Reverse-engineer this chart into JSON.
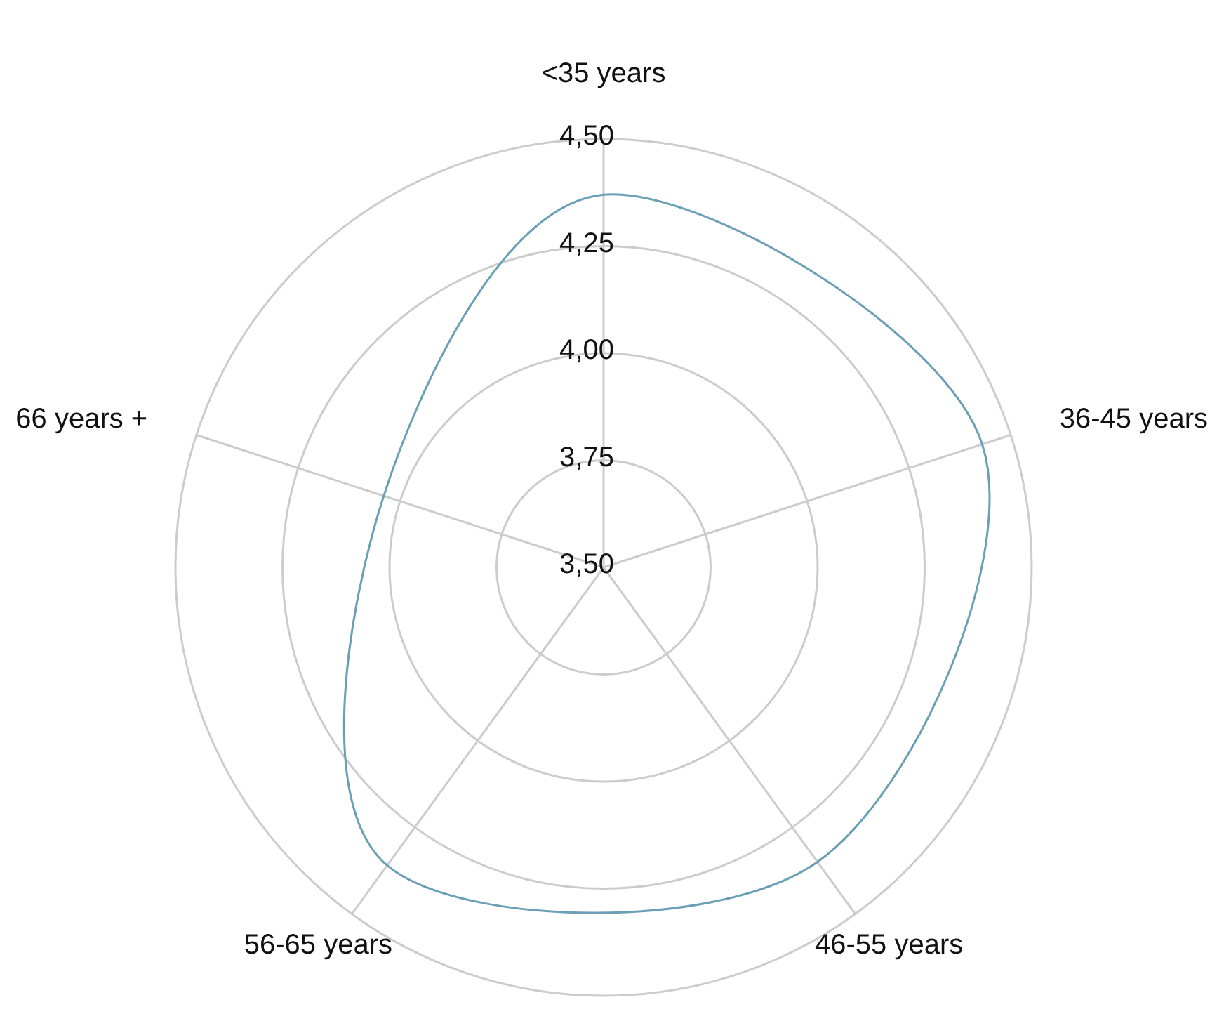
{
  "chart_data": {
    "type": "radar",
    "categories": [
      "<35 years",
      "36-45 years",
      "46-55 years",
      "56-65 years",
      "66 years +"
    ],
    "series": [
      {
        "color": "#6a9fb5",
        "values": [
          4.37,
          4.43,
          4.35,
          4.36,
          4.04
        ]
      }
    ],
    "ylim": [
      3.5,
      4.5
    ],
    "yticks": [
      {
        "value": 3.5,
        "label": "3,50"
      },
      {
        "value": 3.75,
        "label": "3,75"
      },
      {
        "value": 4.0,
        "label": "4,00"
      },
      {
        "value": 4.25,
        "label": "4,25"
      },
      {
        "value": 4.5,
        "label": "4,50"
      }
    ],
    "grid": true
  }
}
